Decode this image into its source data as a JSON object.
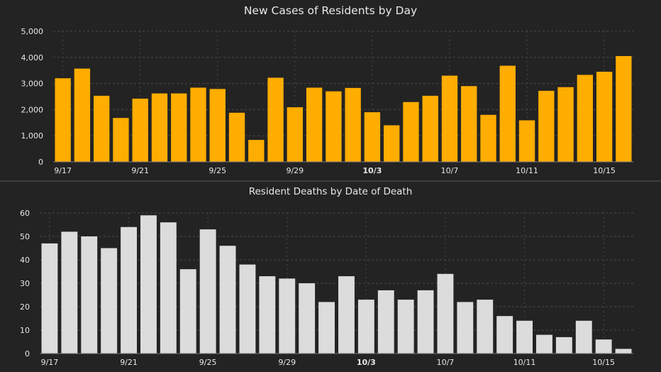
{
  "colors": {
    "background": "#232323",
    "cases_bar": "#ffad00",
    "deaths_bar": "#dcdcdc",
    "text": "#e8e8e8",
    "grid": "#4a4a4a",
    "divider": "#555555"
  },
  "chart_data": [
    {
      "type": "bar",
      "title": "New Cases of Residents by Day",
      "categories": [
        "9/17",
        "9/18",
        "9/19",
        "9/20",
        "9/21",
        "9/22",
        "9/23",
        "9/24",
        "9/25",
        "9/26",
        "9/27",
        "9/28",
        "9/29",
        "9/30",
        "10/1",
        "10/2",
        "10/3",
        "10/4",
        "10/5",
        "10/6",
        "10/7",
        "10/8",
        "10/9",
        "10/10",
        "10/11",
        "10/12",
        "10/13",
        "10/14",
        "10/15",
        "10/16"
      ],
      "tick_labels": [
        "9/17",
        "9/21",
        "9/25",
        "9/29",
        "10/3",
        "10/7",
        "10/11",
        "10/15"
      ],
      "tick_indices": [
        0,
        4,
        8,
        12,
        16,
        20,
        24,
        28
      ],
      "bold_tick": "10/3",
      "values": [
        3200,
        3570,
        2530,
        1680,
        2420,
        2620,
        2620,
        2840,
        2790,
        1880,
        840,
        3220,
        2090,
        2840,
        2700,
        2830,
        1900,
        1400,
        2290,
        2530,
        3300,
        2900,
        1800,
        3680,
        1590,
        2720,
        2860,
        3330,
        3450,
        4050
      ],
      "ylim": [
        0,
        5000
      ],
      "yticks": [
        "0",
        "1,000",
        "2,000",
        "3,000",
        "4,000",
        "5,000"
      ],
      "grid": true
    },
    {
      "type": "bar",
      "title": "Resident Deaths by Date of Death",
      "categories": [
        "9/17",
        "9/18",
        "9/19",
        "9/20",
        "9/21",
        "9/22",
        "9/23",
        "9/24",
        "9/25",
        "9/26",
        "9/27",
        "9/28",
        "9/29",
        "9/30",
        "10/1",
        "10/2",
        "10/3",
        "10/4",
        "10/5",
        "10/6",
        "10/7",
        "10/8",
        "10/9",
        "10/10",
        "10/11",
        "10/12",
        "10/13",
        "10/14",
        "10/15",
        "10/16"
      ],
      "tick_labels": [
        "9/17",
        "9/21",
        "9/25",
        "9/29",
        "10/3",
        "10/7",
        "10/11",
        "10/15"
      ],
      "tick_indices": [
        0,
        4,
        8,
        12,
        16,
        20,
        24,
        28
      ],
      "bold_tick": "10/3",
      "values": [
        47,
        52,
        50,
        45,
        54,
        59,
        56,
        36,
        53,
        46,
        38,
        33,
        32,
        30,
        22,
        33,
        23,
        27,
        23,
        27,
        34,
        22,
        23,
        16,
        14,
        8,
        7,
        14,
        6,
        2
      ],
      "ylim": [
        0,
        60
      ],
      "yticks": [
        "0",
        "10",
        "20",
        "30",
        "40",
        "50",
        "60"
      ],
      "grid": true
    }
  ]
}
